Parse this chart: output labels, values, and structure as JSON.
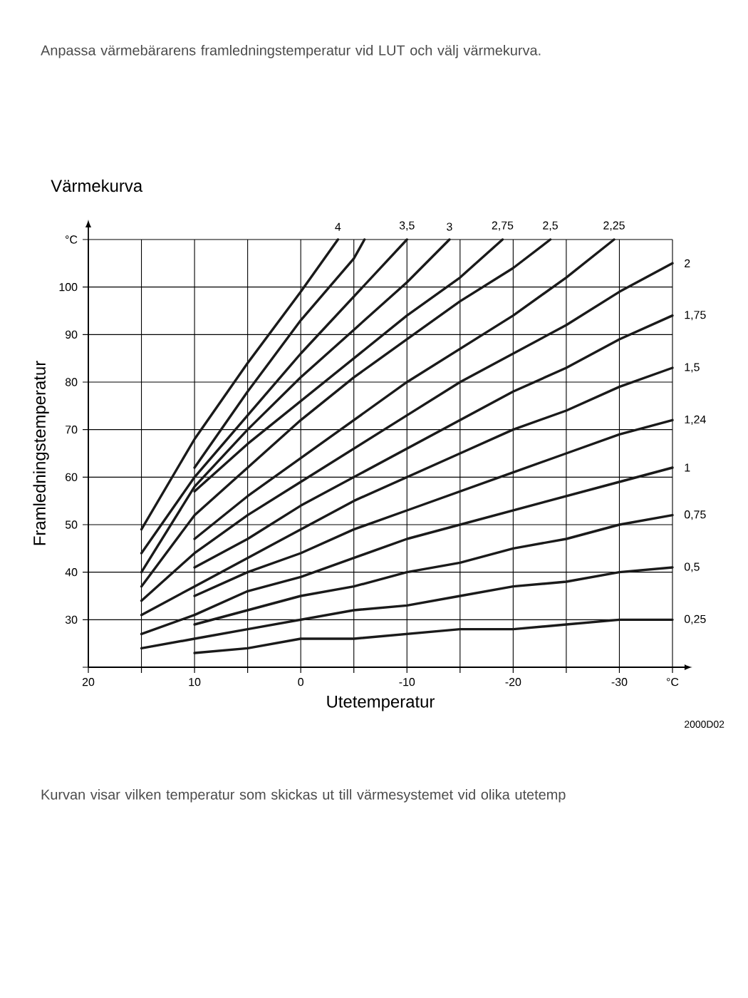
{
  "chart_data": {
    "type": "line",
    "title": "Värmekurva",
    "xlabel": "Utetemperatur",
    "ylabel": "Framledningstemperatur",
    "xlim": [
      20,
      -35
    ],
    "ylim": [
      20,
      110
    ],
    "xticks": [
      20,
      {
        "value": 15,
        "label": null
      },
      10,
      {
        "value": 5,
        "label": null
      },
      0,
      {
        "value": -5,
        "label": null
      },
      -10,
      {
        "value": -15,
        "label": null
      },
      -20,
      {
        "value": -25,
        "label": null
      },
      -30,
      {
        "value": -35,
        "label": "°C"
      }
    ],
    "yticks": [
      {
        "value": 20,
        "label": null
      },
      30,
      40,
      50,
      60,
      70,
      80,
      90,
      100,
      {
        "value": 110,
        "label": "°C"
      }
    ],
    "grid": true,
    "marker": "none",
    "series": [
      {
        "name": "0,25",
        "color": "#1a1a1a",
        "x": [
          10,
          5,
          0,
          -5,
          -10,
          -15,
          -20,
          -25,
          -30,
          -35
        ],
        "values": [
          23,
          24,
          26,
          26,
          27,
          28,
          28,
          29,
          30,
          30
        ]
      },
      {
        "name": "0,5",
        "color": "#1a1a1a",
        "x": [
          15,
          10,
          5,
          0,
          -5,
          -10,
          -15,
          -20,
          -25,
          -30,
          -35
        ],
        "values": [
          24,
          26,
          28,
          30,
          32,
          33,
          35,
          37,
          38,
          40,
          41
        ]
      },
      {
        "name": "0,75",
        "color": "#1a1a1a",
        "x": [
          10,
          5,
          0,
          -5,
          -10,
          -15,
          -20,
          -25,
          -30,
          -35
        ],
        "values": [
          29,
          32,
          35,
          37,
          40,
          42,
          45,
          47,
          50,
          52
        ]
      },
      {
        "name": "1",
        "color": "#1a1a1a",
        "x": [
          15,
          10,
          5,
          0,
          -5,
          -10,
          -15,
          -20,
          -25,
          -30,
          -35
        ],
        "values": [
          27,
          31,
          36,
          39,
          43,
          47,
          50,
          53,
          56,
          59,
          62
        ]
      },
      {
        "name": "1,24",
        "color": "#1a1a1a",
        "x": [
          10,
          5,
          0,
          -5,
          -10,
          -15,
          -20,
          -25,
          -30,
          -35
        ],
        "values": [
          35,
          40,
          44,
          49,
          53,
          57,
          61,
          65,
          69,
          72
        ]
      },
      {
        "name": "1,5",
        "color": "#1a1a1a",
        "x": [
          15,
          10,
          5,
          0,
          -5,
          -10,
          -15,
          -20,
          -25,
          -30,
          -35
        ],
        "values": [
          31,
          37,
          43,
          49,
          55,
          60,
          65,
          70,
          74,
          79,
          83
        ]
      },
      {
        "name": "1,75",
        "color": "#1a1a1a",
        "x": [
          10,
          5,
          0,
          -5,
          -10,
          -15,
          -20,
          -25,
          -30,
          -35
        ],
        "values": [
          41,
          47,
          54,
          60,
          66,
          72,
          78,
          83,
          89,
          94
        ]
      },
      {
        "name": "2",
        "color": "#1a1a1a",
        "x": [
          15,
          10,
          5,
          0,
          -5,
          -10,
          -15,
          -20,
          -25,
          -30,
          -35
        ],
        "values": [
          34,
          44,
          52,
          59,
          66,
          73,
          80,
          86,
          92,
          99,
          105
        ]
      },
      {
        "name": "2,25",
        "color": "#1a1a1a",
        "x": [
          10,
          5,
          0,
          -5,
          -10,
          -15,
          -20,
          -25,
          -29.5
        ],
        "values": [
          47,
          56,
          64,
          72,
          80,
          87,
          94,
          102,
          110
        ]
      },
      {
        "name": "2,5",
        "color": "#1a1a1a",
        "x": [
          15,
          10,
          5,
          0,
          -5,
          -10,
          -15,
          -20,
          -23.5
        ],
        "values": [
          37,
          52,
          62,
          72,
          81,
          89,
          97,
          104,
          110
        ]
      },
      {
        "name": "2,75",
        "color": "#1a1a1a",
        "x": [
          10,
          5,
          0,
          -5,
          -10,
          -15,
          -19
        ],
        "values": [
          57,
          67,
          76,
          85,
          94,
          102,
          110
        ]
      },
      {
        "name": "3",
        "color": "#1a1a1a",
        "x": [
          15,
          10,
          5,
          0,
          -5,
          -10,
          -14
        ],
        "values": [
          40,
          58,
          70,
          81,
          91,
          101,
          110
        ]
      },
      {
        "name": "3,5",
        "color": "#1a1a1a",
        "x": [
          15,
          10,
          5,
          0,
          -5,
          -10
        ],
        "values": [
          44,
          60,
          73,
          86,
          98,
          110
        ]
      },
      {
        "color": "#1a1a1a",
        "x": [
          10,
          5,
          0,
          -5,
          -6
        ],
        "values": [
          62,
          78,
          93,
          106,
          110
        ]
      },
      {
        "name": "4",
        "color": "#1a1a1a",
        "x": [
          15,
          10,
          5,
          0,
          -3.5
        ],
        "values": [
          49,
          68,
          84,
          99,
          110
        ]
      }
    ],
    "annotations": [
      "Anpassa värmebärarens framledningstemperatur vid LUT och välj värmekurva.",
      "Kurvan visar vilken temperatur som skickas ut till värmesystemet vid olika utetemp",
      "2000D02"
    ]
  }
}
